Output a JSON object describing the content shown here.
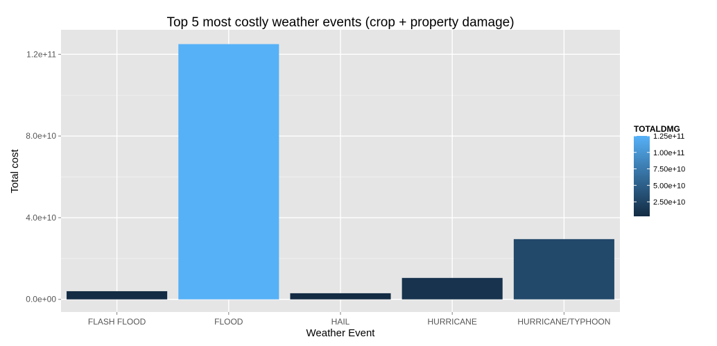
{
  "chart_data": {
    "type": "bar",
    "title": "Top 5 most costly weather events (crop + property damage)",
    "xlabel": "Weather Event",
    "ylabel": "Total cost",
    "categories": [
      "FLASH FLOOD",
      "FLOOD",
      "HAIL",
      "HURRICANE",
      "HURRICANE/TYPHOON"
    ],
    "values": [
      4000000000.0,
      125000000000.0,
      3000000000.0,
      10500000000.0,
      29500000000.0
    ],
    "ylim": [
      -6200000000.0,
      132000000000.0
    ],
    "yticks": [
      0,
      40000000000.0,
      80000000000.0,
      120000000000.0
    ],
    "ytick_labels": [
      "0.0e+00",
      "4.0e+10",
      "8.0e+10",
      "1.2e+11"
    ],
    "grid": true,
    "background": "#e5e5e5",
    "gridline_color": "#ffffff",
    "color_scale": {
      "title": "TOTALDMG",
      "low_color": "#132b43",
      "high_color": "#56b1f7",
      "min": 3000000000.0,
      "max": 125000000000.0,
      "breaks": [
        25000000000.0,
        50000000000.0,
        75000000000.0,
        100000000000.0,
        125000000000.0
      ],
      "break_labels": [
        "2.50e+10",
        "5.00e+10",
        "7.50e+10",
        "1.00e+11",
        "1.25e+11"
      ]
    },
    "legend_position": "right"
  }
}
